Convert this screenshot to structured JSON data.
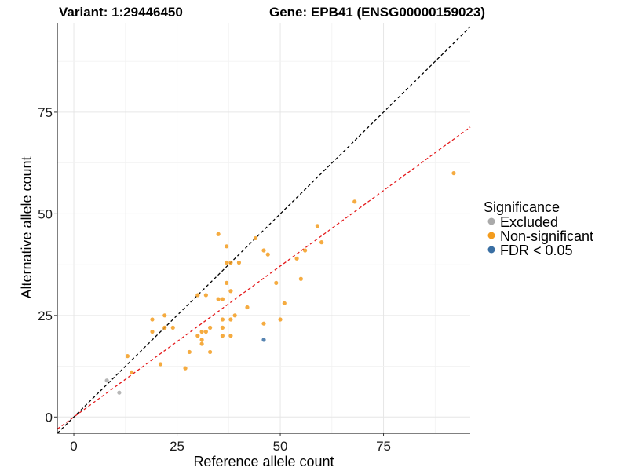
{
  "chart_data": {
    "type": "scatter",
    "title_left": "Variant: 1:29446450",
    "title_right": "Gene: EPB41 (ENSG00000159023)",
    "xlabel": "Reference allele count",
    "ylabel": "Alternative allele count",
    "xlim": [
      -4,
      96
    ],
    "ylim": [
      -4,
      97
    ],
    "x_ticks": [
      0,
      25,
      50,
      75
    ],
    "y_ticks": [
      0,
      25,
      50,
      75
    ],
    "grid": true,
    "legend_placement": "right",
    "legend": {
      "title": "Significance",
      "entries": [
        {
          "label": "Excluded",
          "color": "#aaaaaa"
        },
        {
          "label": "Non-significant",
          "color": "#f39c1e"
        },
        {
          "label": "FDR < 0.05",
          "color": "#3a6fa3"
        }
      ]
    },
    "reference_lines": [
      {
        "name": "y = x",
        "slope": 1,
        "intercept": 0,
        "color": "#000000",
        "dash": true
      },
      {
        "name": "fit",
        "slope": 0.743,
        "intercept": 0,
        "color": "#e41a1c",
        "dash": true
      }
    ],
    "series": [
      {
        "name": "Excluded",
        "color": "#aaaaaa",
        "points": [
          [
            8,
            9
          ],
          [
            11,
            6
          ]
        ]
      },
      {
        "name": "Non-significant",
        "color": "#f39c1e",
        "points": [
          [
            13,
            15
          ],
          [
            14,
            11
          ],
          [
            19,
            21
          ],
          [
            19,
            24
          ],
          [
            21,
            13
          ],
          [
            22,
            25
          ],
          [
            22,
            22
          ],
          [
            24,
            22
          ],
          [
            27,
            12
          ],
          [
            28,
            16
          ],
          [
            30,
            20
          ],
          [
            30,
            30
          ],
          [
            31,
            21
          ],
          [
            31,
            19
          ],
          [
            31,
            18
          ],
          [
            32,
            21
          ],
          [
            32,
            30
          ],
          [
            33,
            22
          ],
          [
            33,
            16
          ],
          [
            35,
            45
          ],
          [
            35,
            29
          ],
          [
            36,
            29
          ],
          [
            36,
            24
          ],
          [
            36,
            22
          ],
          [
            36,
            20
          ],
          [
            37,
            42
          ],
          [
            37,
            38
          ],
          [
            37,
            33
          ],
          [
            38,
            38
          ],
          [
            38,
            31
          ],
          [
            38,
            24
          ],
          [
            38,
            20
          ],
          [
            39,
            25
          ],
          [
            40,
            38
          ],
          [
            42,
            27
          ],
          [
            44,
            44
          ],
          [
            46,
            41
          ],
          [
            46,
            23
          ],
          [
            47,
            40
          ],
          [
            49,
            33
          ],
          [
            50,
            24
          ],
          [
            51,
            28
          ],
          [
            54,
            39
          ],
          [
            55,
            34
          ],
          [
            56,
            41
          ],
          [
            59,
            47
          ],
          [
            60,
            43
          ],
          [
            68,
            53
          ],
          [
            92,
            60
          ]
        ]
      },
      {
        "name": "FDR < 0.05",
        "color": "#3a6fa3",
        "points": [
          [
            46,
            19
          ]
        ]
      }
    ]
  }
}
